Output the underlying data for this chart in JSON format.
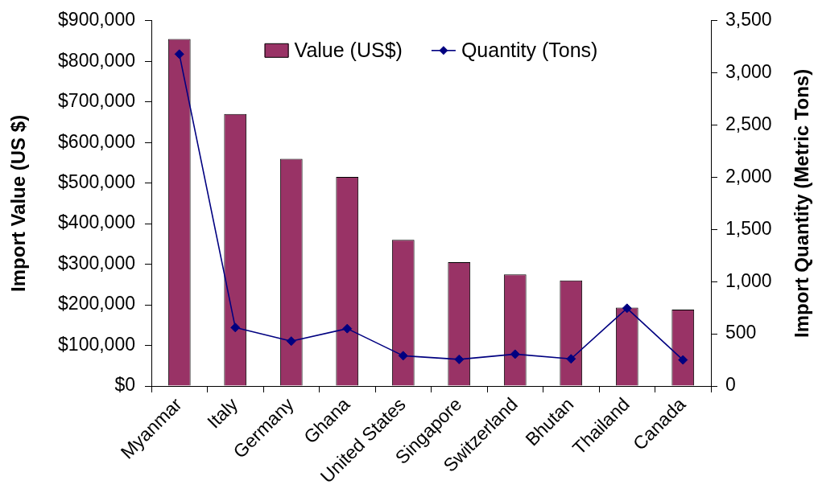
{
  "chart_data": {
    "type": "bar",
    "categories": [
      "Myanmar",
      "Italy",
      "Germany",
      "Ghana",
      "United States",
      "Singapore",
      "Switzerland",
      "Bhutan",
      "Thailand",
      "Canada"
    ],
    "ylabel": "Import Value (US $)",
    "y2label": "Import Quantity (Metric Tons)",
    "series": [
      {
        "name": "Value (US$)",
        "color": "#993366",
        "values": [
          855000,
          670000,
          560000,
          515000,
          360000,
          305000,
          275000,
          260000,
          193000,
          188000
        ]
      },
      {
        "name": "Quantity (Tons)",
        "type": "line",
        "axis": "y2",
        "color": "#000080",
        "values": [
          3180,
          560,
          430,
          550,
          290,
          255,
          305,
          260,
          745,
          250
        ]
      }
    ],
    "ylim": [
      0,
      900000
    ],
    "yticks": [
      {
        "value": 0,
        "label": "$0"
      },
      {
        "value": 100000,
        "label": "$100,000"
      },
      {
        "value": 200000,
        "label": "$200,000"
      },
      {
        "value": 300000,
        "label": "$300,000"
      },
      {
        "value": 400000,
        "label": "$400,000"
      },
      {
        "value": 500000,
        "label": "$500,000"
      },
      {
        "value": 600000,
        "label": "$600,000"
      },
      {
        "value": 700000,
        "label": "$700,000"
      },
      {
        "value": 800000,
        "label": "$800,000"
      },
      {
        "value": 900000,
        "label": "$900,000"
      }
    ],
    "y2lim": [
      0,
      3500
    ],
    "y2ticks": [
      0,
      500,
      {
        "value": 1000,
        "label": "1,000"
      },
      {
        "value": 1500,
        "label": "1,500"
      },
      {
        "value": 2000,
        "label": "2,000"
      },
      {
        "value": 2500,
        "label": "2,500"
      },
      {
        "value": 3000,
        "label": "3,000"
      },
      {
        "value": 3500,
        "label": "3,500"
      }
    ],
    "legend": "top",
    "marker": "diamond",
    "line_style": "solid"
  }
}
